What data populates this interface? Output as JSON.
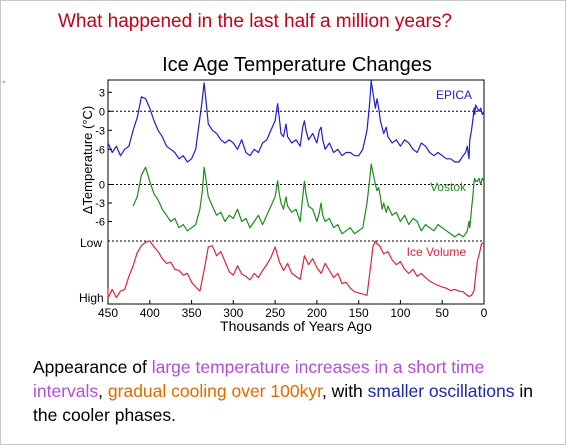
{
  "slide": {
    "heading": "What happened in the last half a million years?",
    "caption": {
      "p1": "Appearance of ",
      "p2": "large temperature increases in a short time intervals",
      "p3": ", ",
      "p4": "gradual cooling over 100kyr",
      "p5": ",  with ",
      "p6": "smaller oscillations",
      "p7": " in the cooler phases."
    }
  },
  "colors": {
    "heading": "#c0001a",
    "epica": "#1f1fc8",
    "vostok": "#1f8a1f",
    "ice_volume": "#d22a3a",
    "caption_purple": "#b24fd6",
    "caption_orange": "#e06a00",
    "caption_blue": "#1a2aa8"
  },
  "chart_data": {
    "type": "line",
    "title": "Ice Age Temperature Changes",
    "xlabel": "Thousands of Years Ago",
    "ylabel": "ΔTemperature (°C)",
    "xlim": [
      450,
      0
    ],
    "x_ticks": [
      450,
      400,
      350,
      300,
      250,
      200,
      150,
      100,
      50,
      0
    ],
    "panels": [
      {
        "name": "EPICA",
        "ylim": [
          -8,
          4
        ],
        "y_ticks": [
          3,
          0,
          -3,
          -6
        ],
        "reference": 0,
        "x": [
          450,
          445,
          440,
          435,
          430,
          425,
          420,
          415,
          412,
          410,
          405,
          400,
          395,
          390,
          385,
          380,
          375,
          370,
          365,
          360,
          355,
          350,
          345,
          340,
          337,
          335,
          333,
          330,
          325,
          320,
          315,
          310,
          305,
          300,
          295,
          290,
          285,
          280,
          275,
          270,
          265,
          260,
          255,
          250,
          247,
          245,
          243,
          240,
          237,
          235,
          230,
          225,
          220,
          217,
          215,
          213,
          210,
          205,
          200,
          197,
          195,
          193,
          190,
          185,
          180,
          175,
          170,
          165,
          160,
          155,
          150,
          145,
          140,
          137,
          135,
          133,
          130,
          128,
          126,
          124,
          122,
          120,
          117,
          115,
          110,
          105,
          100,
          95,
          90,
          85,
          80,
          75,
          70,
          65,
          60,
          55,
          50,
          45,
          40,
          35,
          30,
          25,
          22,
          20,
          18,
          17,
          15,
          13,
          12,
          11,
          10,
          8,
          6,
          4,
          2,
          0
        ],
        "values": [
          -5,
          -6.5,
          -5.5,
          -7,
          -6,
          -5.5,
          -3,
          -1,
          1,
          2.3,
          2,
          0.5,
          -1.5,
          -3,
          -4,
          -5.5,
          -6,
          -6.5,
          -7.5,
          -7,
          -8,
          -7.5,
          -6,
          -1,
          2,
          4.5,
          2,
          -2,
          -3,
          -3.5,
          -4.5,
          -5,
          -4.5,
          -5,
          -6,
          -4.5,
          -6.5,
          -7,
          -6,
          -6.5,
          -5,
          -4.5,
          -3,
          -1.5,
          1.2,
          -1,
          -3.5,
          -4,
          -2,
          -4,
          -5,
          -4.5,
          -5.5,
          -2.5,
          -1.5,
          -3,
          -4.5,
          -3.5,
          -5,
          -3,
          -2.5,
          -4.5,
          -6,
          -5,
          -6.5,
          -6,
          -7,
          -6.5,
          -6.5,
          -7,
          -7,
          -6,
          -3,
          1,
          4.8,
          3,
          0.5,
          2,
          0.5,
          -1.5,
          -2.5,
          -3.5,
          -2.5,
          -4,
          -5,
          -4.5,
          -5.5,
          -4.5,
          -5,
          -6,
          -6.5,
          -5,
          -5.5,
          -6.5,
          -7,
          -6.5,
          -7,
          -7.5,
          -7.5,
          -8,
          -8,
          -7,
          -6.5,
          -5.5,
          -7.5,
          -4.5,
          -3,
          -1,
          0.5,
          -0.5,
          1,
          0.5,
          0,
          0.5,
          -0.5,
          0
        ]
      },
      {
        "name": "Vostok",
        "ylim": [
          -9,
          3
        ],
        "y_ticks": [
          0,
          -3,
          -6
        ],
        "reference": 0,
        "x": [
          420,
          415,
          410,
          405,
          400,
          395,
          390,
          385,
          380,
          375,
          370,
          365,
          360,
          355,
          350,
          345,
          340,
          337,
          335,
          333,
          330,
          325,
          320,
          315,
          310,
          305,
          300,
          295,
          290,
          285,
          280,
          275,
          270,
          265,
          260,
          255,
          250,
          247,
          245,
          243,
          240,
          237,
          235,
          230,
          225,
          220,
          217,
          215,
          213,
          210,
          205,
          200,
          197,
          195,
          193,
          190,
          185,
          180,
          175,
          170,
          165,
          160,
          155,
          150,
          145,
          140,
          137,
          135,
          133,
          130,
          128,
          126,
          124,
          122,
          120,
          117,
          115,
          110,
          105,
          100,
          95,
          90,
          85,
          80,
          75,
          70,
          65,
          60,
          55,
          50,
          45,
          40,
          35,
          30,
          25,
          22,
          20,
          18,
          17,
          15,
          13,
          12,
          11,
          10,
          8,
          6,
          4,
          2,
          0
        ],
        "values": [
          -3.5,
          -2,
          1.5,
          2.8,
          0.5,
          -1.5,
          -2.5,
          -4,
          -5,
          -6,
          -5.5,
          -7,
          -6.5,
          -7.5,
          -7,
          -6.5,
          -4,
          -1,
          2.8,
          1,
          -2,
          -3.5,
          -5,
          -4.5,
          -6,
          -5,
          -5.5,
          -4,
          -6,
          -5.5,
          -7,
          -6,
          -5,
          -6.5,
          -5,
          -3.5,
          -2,
          0.6,
          -1.5,
          -3,
          -4,
          -2,
          -3.5,
          -4.5,
          -4,
          -6,
          -2,
          0.5,
          -1.5,
          -3.5,
          -4,
          -6,
          -4.5,
          -3,
          -5,
          -6,
          -5.5,
          -7,
          -6.5,
          -8,
          -7.5,
          -7,
          -8,
          -7.5,
          -7,
          -3,
          0.5,
          3.3,
          2,
          0,
          -1,
          -0.5,
          -2,
          -4,
          -3,
          -4.5,
          -3.5,
          -5,
          -4.5,
          -6,
          -5,
          -6.5,
          -5.5,
          -6,
          -7.5,
          -6.5,
          -7,
          -7.5,
          -6.5,
          -7,
          -7.5,
          -8,
          -8.5,
          -8,
          -8.5,
          -8,
          -7.5,
          -6,
          -7,
          -4,
          -1.5,
          0.5,
          1,
          0.5,
          0.5,
          1,
          0,
          1,
          0.5
        ]
      },
      {
        "name": "Ice Volume",
        "ylim_labels": [
          "Low",
          "High"
        ],
        "value_scale": "0 = Low, 1 = High",
        "x": [
          455,
          450,
          445,
          440,
          435,
          430,
          425,
          420,
          415,
          410,
          405,
          400,
          395,
          390,
          385,
          380,
          375,
          370,
          365,
          360,
          355,
          350,
          345,
          340,
          335,
          330,
          325,
          320,
          315,
          310,
          305,
          300,
          295,
          290,
          285,
          280,
          275,
          270,
          265,
          260,
          255,
          250,
          245,
          240,
          235,
          230,
          225,
          220,
          215,
          210,
          205,
          200,
          195,
          190,
          185,
          180,
          175,
          170,
          165,
          160,
          155,
          150,
          145,
          140,
          135,
          133,
          130,
          128,
          125,
          120,
          115,
          110,
          105,
          100,
          95,
          90,
          85,
          80,
          75,
          70,
          65,
          60,
          55,
          50,
          45,
          40,
          35,
          30,
          25,
          22,
          20,
          18,
          15,
          12,
          10,
          8,
          5,
          3,
          0
        ],
        "values": [
          0.8,
          0.97,
          0.82,
          0.96,
          0.85,
          0.82,
          0.6,
          0.42,
          0.2,
          0.08,
          0.02,
          0.0,
          0.1,
          0.18,
          0.3,
          0.38,
          0.36,
          0.48,
          0.5,
          0.58,
          0.55,
          0.7,
          0.78,
          0.85,
          0.5,
          0.1,
          0.08,
          0.25,
          0.18,
          0.35,
          0.52,
          0.58,
          0.42,
          0.56,
          0.6,
          0.66,
          0.55,
          0.62,
          0.5,
          0.4,
          0.28,
          0.1,
          0.35,
          0.5,
          0.38,
          0.55,
          0.6,
          0.65,
          0.25,
          0.4,
          0.3,
          0.45,
          0.55,
          0.38,
          0.5,
          0.62,
          0.55,
          0.72,
          0.7,
          0.8,
          0.86,
          0.88,
          0.9,
          0.92,
          0.35,
          0.1,
          0.0,
          0.05,
          0.08,
          0.22,
          0.18,
          0.32,
          0.4,
          0.35,
          0.48,
          0.55,
          0.48,
          0.6,
          0.55,
          0.62,
          0.68,
          0.72,
          0.75,
          0.78,
          0.8,
          0.84,
          0.82,
          0.85,
          0.86,
          0.9,
          0.92,
          0.94,
          0.92,
          0.85,
          0.6,
          0.35,
          0.18,
          0.05,
          0.02
        ]
      }
    ]
  }
}
